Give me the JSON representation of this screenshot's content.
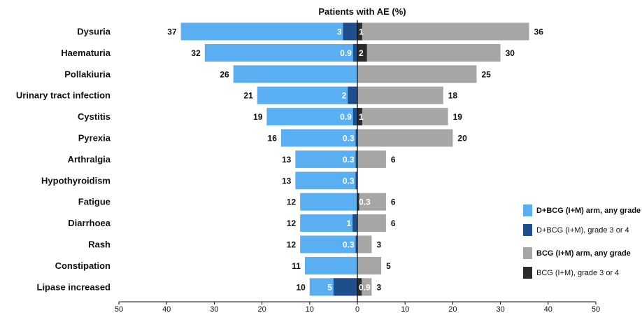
{
  "chart_data": {
    "type": "bar",
    "title": "Patients with AE (%)",
    "orientation": "horizontal-diverging",
    "xlim": [
      -50,
      50
    ],
    "ticks": [
      50,
      40,
      30,
      20,
      10,
      0,
      10,
      20,
      30,
      40,
      50
    ],
    "categories": [
      "Dysuria",
      "Haematuria",
      "Pollakiuria",
      "Urinary tract infection",
      "Cystitis",
      "Pyrexia",
      "Arthralgia",
      "Hypothyroidism",
      "Fatigue",
      "Diarrhoea",
      "Rash",
      "Constipation",
      "Lipase increased"
    ],
    "series": [
      {
        "name": "D+BCG (I+M) arm, any grade",
        "side": "left",
        "color": "#5aaef2",
        "values": [
          37,
          32,
          26,
          21,
          19,
          16,
          13,
          13,
          12,
          12,
          12,
          11,
          10
        ],
        "labels": [
          "37",
          "32",
          "26",
          "21",
          "19",
          "16",
          "13",
          "13",
          "12",
          "12",
          "12",
          "11",
          "10"
        ]
      },
      {
        "name": "D+BCG (I+M), grade 3 or 4",
        "side": "left",
        "color": "#1f4e8c",
        "values": [
          3,
          0.9,
          null,
          2,
          0.9,
          0.3,
          0.3,
          0.3,
          null,
          1,
          0.3,
          null,
          5
        ],
        "labels": [
          "3",
          "0.9",
          "",
          "2",
          "0.9",
          "0.3",
          "0.3",
          "0.3",
          "",
          "1",
          "0.3",
          "",
          "5"
        ]
      },
      {
        "name": "BCG (I+M) arm, any grade",
        "side": "right",
        "color": "#a6a6a6",
        "values": [
          36,
          30,
          25,
          18,
          19,
          20,
          6,
          null,
          6,
          6,
          3,
          5,
          3
        ],
        "labels": [
          "36",
          "30",
          "25",
          "18",
          "19",
          "20",
          "6",
          "",
          "6",
          "6",
          "3",
          "5",
          "3"
        ]
      },
      {
        "name": "BCG (I+M), grade 3 or 4",
        "side": "right",
        "color": "#2b2b2b",
        "values": [
          1,
          2,
          null,
          null,
          1,
          null,
          null,
          null,
          0.3,
          null,
          null,
          null,
          0.9
        ],
        "labels": [
          "1",
          "2",
          "",
          "",
          "1",
          "",
          "",
          "",
          "0.3",
          "",
          "",
          "",
          "0.9"
        ]
      }
    ],
    "legend": "right",
    "grid": false
  }
}
